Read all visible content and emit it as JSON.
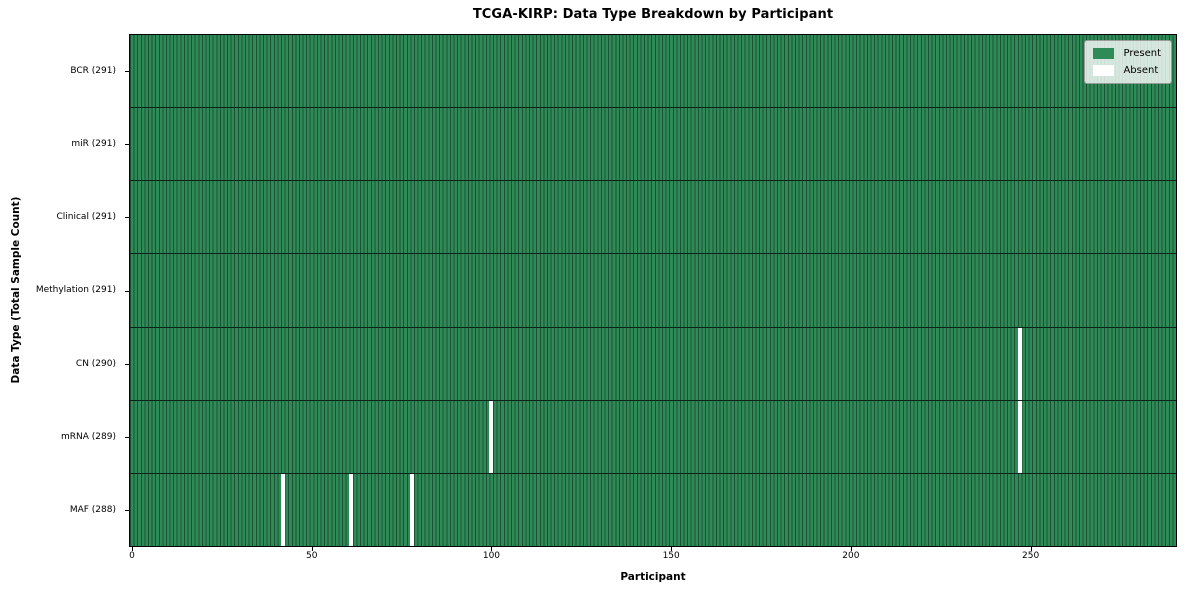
{
  "chart_data": {
    "type": "heatmap",
    "title": "TCGA-KIRP: Data Type Breakdown by Participant",
    "xlabel": "Participant",
    "ylabel": "Data Type (Total Sample Count)",
    "x_ticks": [
      0,
      50,
      100,
      150,
      200,
      250
    ],
    "xlim": [
      -0.5,
      290.5
    ],
    "n_participants": 291,
    "legend_items": [
      {
        "label": "Present",
        "color": "#2e8b57"
      },
      {
        "label": "Absent",
        "color": "#ffffff"
      }
    ],
    "colors": {
      "present": "#2e8b57",
      "bar_edge": "#1c5134",
      "absent": "#ffffff",
      "separator": "#0c2417",
      "axis": "#000000"
    },
    "rows": [
      {
        "label": "BCR (291)",
        "data_type": "BCR",
        "present_count": 291,
        "absent_participants": []
      },
      {
        "label": "miR (291)",
        "data_type": "miR",
        "present_count": 291,
        "absent_participants": []
      },
      {
        "label": "Clinical (291)",
        "data_type": "Clinical",
        "present_count": 291,
        "absent_participants": []
      },
      {
        "label": "Methylation (291)",
        "data_type": "Methylation",
        "present_count": 291,
        "absent_participants": []
      },
      {
        "label": "CN (290)",
        "data_type": "CN",
        "present_count": 290,
        "absent_participants": [
          247
        ]
      },
      {
        "label": "mRNA (289)",
        "data_type": "mRNA",
        "present_count": 289,
        "absent_participants": [
          100,
          247
        ]
      },
      {
        "label": "MAF (288)",
        "data_type": "MAF",
        "present_count": 288,
        "absent_participants": [
          42,
          61,
          78
        ]
      }
    ]
  }
}
